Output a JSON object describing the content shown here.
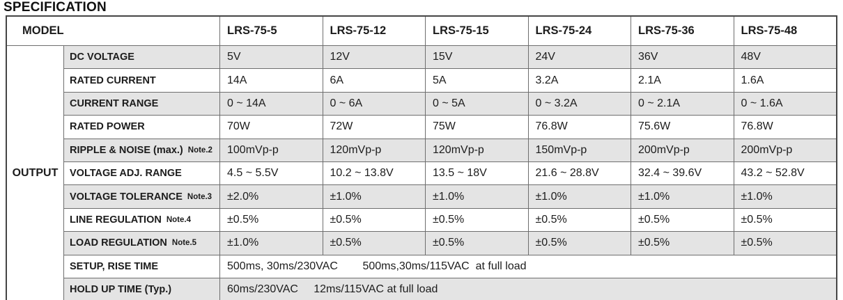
{
  "page_title": "SPECIFICATION",
  "table": {
    "model_label": "MODEL",
    "models": [
      "LRS-75-5",
      "LRS-75-12",
      "LRS-75-15",
      "LRS-75-24",
      "LRS-75-36",
      "LRS-75-48"
    ],
    "group_label": "OUTPUT",
    "rows": [
      {
        "label": "DC VOLTAGE",
        "values": [
          "5V",
          "12V",
          "15V",
          "24V",
          "36V",
          "48V"
        ]
      },
      {
        "label": "RATED CURRENT",
        "values": [
          "14A",
          "6A",
          "5A",
          "3.2A",
          "2.1A",
          "1.6A"
        ]
      },
      {
        "label": "CURRENT RANGE",
        "values": [
          "0 ~ 14A",
          "0 ~ 6A",
          "0 ~ 5A",
          "0 ~ 3.2A",
          "0 ~ 2.1A",
          "0 ~ 1.6A"
        ]
      },
      {
        "label": "RATED POWER",
        "values": [
          "70W",
          "72W",
          "75W",
          "76.8W",
          "75.6W",
          "76.8W"
        ]
      },
      {
        "label": "RIPPLE & NOISE (max.)",
        "note": "Note.2",
        "values": [
          "100mVp-p",
          "120mVp-p",
          "120mVp-p",
          "150mVp-p",
          "200mVp-p",
          "200mVp-p"
        ]
      },
      {
        "label": "VOLTAGE ADJ. RANGE",
        "values": [
          "4.5 ~ 5.5V",
          "10.2 ~ 13.8V",
          "13.5 ~ 18V",
          "21.6 ~ 28.8V",
          "32.4 ~ 39.6V",
          "43.2 ~ 52.8V"
        ]
      },
      {
        "label": "VOLTAGE TOLERANCE",
        "note": "Note.3",
        "values": [
          "±2.0%",
          "±1.0%",
          "±1.0%",
          "±1.0%",
          "±1.0%",
          "±1.0%"
        ]
      },
      {
        "label": "LINE REGULATION",
        "note": "Note.4",
        "values": [
          "±0.5%",
          "±0.5%",
          "±0.5%",
          "±0.5%",
          "±0.5%",
          "±0.5%"
        ]
      },
      {
        "label": "LOAD REGULATION",
        "note": "Note.5",
        "values": [
          "±1.0%",
          "±0.5%",
          "±0.5%",
          "±0.5%",
          "±0.5%",
          "±0.5%"
        ]
      },
      {
        "label": "SETUP, RISE TIME",
        "merged_value": "500ms, 30ms/230VAC        500ms,30ms/115VAC  at full load"
      },
      {
        "label": "HOLD UP TIME (Typ.)",
        "merged_value": "60ms/230VAC     12ms/115VAC at full load"
      }
    ],
    "colors": {
      "shaded_row_bg": "#e4e4e4",
      "grid_line": "#6e6e6e",
      "outer_border": "#454545",
      "text": "#1c1c1c"
    }
  }
}
